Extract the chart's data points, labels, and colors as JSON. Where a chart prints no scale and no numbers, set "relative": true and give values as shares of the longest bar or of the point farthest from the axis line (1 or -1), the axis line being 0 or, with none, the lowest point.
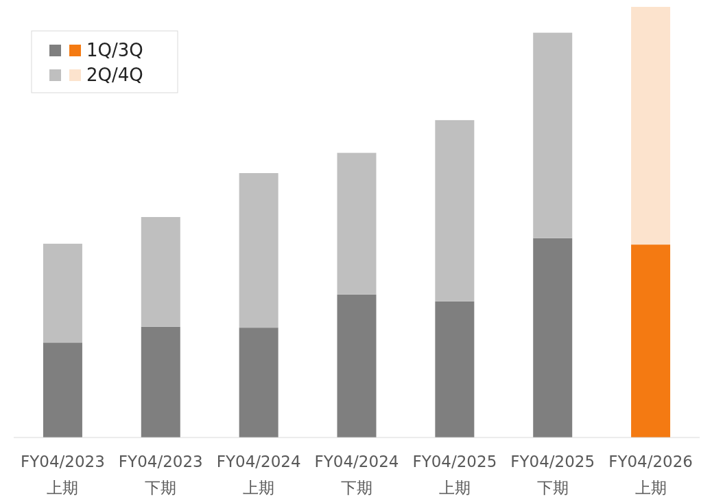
{
  "chart_data": {
    "type": "bar",
    "stacked": true,
    "relative": true,
    "legend": "top left",
    "categories": [
      "FY04/2023\n上期",
      "FY04/2023\n下期",
      "FY04/2024\n上期",
      "FY04/2024\n下期",
      "FY04/2025\n上期",
      "FY04/2025\n下期",
      "FY04/2026\n上期"
    ],
    "series": [
      {
        "name": "1Q/3Q",
        "colors": [
          "#7f7f7f",
          "#7f7f7f",
          "#7f7f7f",
          "#7f7f7f",
          "#7f7f7f",
          "#7f7f7f",
          "#f47a12"
        ],
        "values": [
          0.22,
          0.257,
          0.255,
          0.332,
          0.316,
          0.463,
          0.448
        ]
      },
      {
        "name": "2Q/4Q",
        "colors": [
          "#bfbfbf",
          "#bfbfbf",
          "#bfbfbf",
          "#bfbfbf",
          "#bfbfbf",
          "#bfbfbf",
          "#fce3cd"
        ],
        "values": [
          0.23,
          0.255,
          0.359,
          0.329,
          0.421,
          0.477,
          0.552
        ]
      }
    ]
  }
}
